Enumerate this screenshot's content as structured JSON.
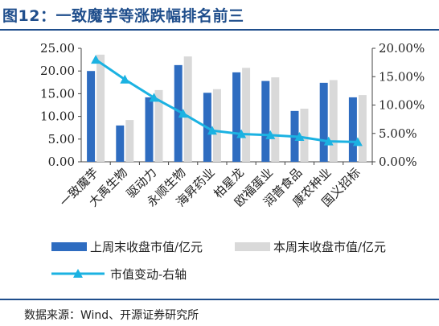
{
  "title": "图12：一致魔芋等涨跌幅排名前三",
  "source": "数据来源：Wind、开源证券研究所",
  "colors": {
    "title": "#1f4e8c",
    "last_week": "#2e6cc0",
    "this_week": "#d9d9d9",
    "change_line": "#1bb2e2"
  },
  "chart_data": {
    "type": "bar",
    "categories": [
      "一致魔芋",
      "大禹生物",
      "驱动力",
      "永顺生物",
      "海昇药业",
      "柏星龙",
      "欧福蛋业",
      "润普食品",
      "康农种业",
      "国义招标"
    ],
    "series": [
      {
        "name": "上周末收盘市值/亿元",
        "type": "bar",
        "axis": "left",
        "values": [
          20.0,
          8.0,
          14.2,
          21.3,
          15.2,
          19.7,
          17.8,
          11.2,
          17.4,
          14.2
        ]
      },
      {
        "name": "本周末收盘市值/亿元",
        "type": "bar",
        "axis": "left",
        "values": [
          23.6,
          9.2,
          15.8,
          23.2,
          16.0,
          20.7,
          18.6,
          11.7,
          18.0,
          14.7
        ]
      },
      {
        "name": "市值变动-右轴",
        "type": "line",
        "marker": "triangle",
        "axis": "right",
        "values": [
          18.0,
          14.5,
          11.3,
          8.5,
          5.5,
          4.9,
          4.7,
          4.4,
          3.6,
          3.5
        ]
      }
    ],
    "y_left": {
      "min": 0,
      "max": 25,
      "ticks": [
        "0.00",
        "5.00",
        "10.00",
        "15.00",
        "20.00",
        "25.00"
      ]
    },
    "y_right": {
      "min": 0,
      "max": 20,
      "ticks": [
        "0.00%",
        "5.00%",
        "10.00%",
        "15.00%",
        "20.00%"
      ]
    },
    "grid": false,
    "legend_position": "bottom"
  }
}
